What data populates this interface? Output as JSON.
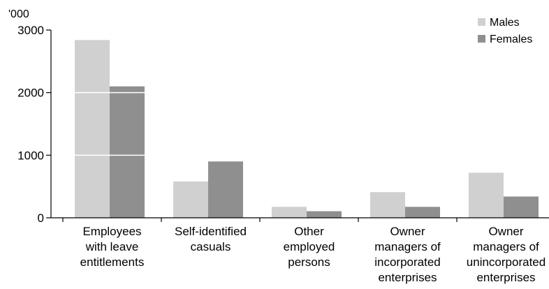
{
  "chart_data": {
    "type": "bar",
    "unit_label": "'000",
    "categories": [
      [
        "Employees",
        "with leave",
        "entitlements"
      ],
      [
        "Self-identified",
        "casuals"
      ],
      [
        "Other",
        "employed",
        "persons"
      ],
      [
        "Owner",
        "managers of",
        "incorporated",
        "enterprises"
      ],
      [
        "Owner",
        "managers of",
        "unincorporated",
        "enterprises"
      ]
    ],
    "series": [
      {
        "name": "Males",
        "values": [
          2840,
          580,
          175,
          410,
          720
        ]
      },
      {
        "name": "Females",
        "values": [
          2100,
          900,
          105,
          175,
          340
        ]
      }
    ],
    "ylim": [
      0,
      3000
    ],
    "yticks": [
      0,
      1000,
      2000,
      3000
    ],
    "grid": "white lines across bars",
    "legend_position": "top-right",
    "colors": {
      "Males": "#d0d0d0",
      "Females": "#8f8f8f",
      "axis": "#000000",
      "gridline": "#ffffff"
    }
  }
}
